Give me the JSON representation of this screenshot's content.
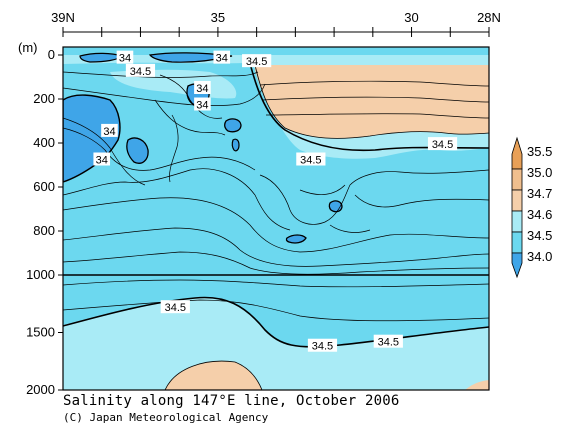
{
  "chart_data": {
    "type": "heatmap",
    "title": "Salinity along 147°E line, October 2006",
    "x_ticks": [
      "39N",
      "35",
      "30",
      "28N"
    ],
    "x_ticks_lat": [
      39,
      35,
      30,
      28
    ],
    "xlim": [
      39,
      28
    ],
    "y_unit_label": "(m)",
    "y_ticks": [
      "0",
      "200",
      "400",
      "600",
      "800",
      "1000",
      "1500",
      "2000"
    ],
    "y_ticks_m": [
      0,
      200,
      400,
      600,
      800,
      1000,
      1500,
      2000
    ],
    "ylim": [
      0,
      2000
    ],
    "y_scale_break_m": 1000,
    "colorbar": {
      "labels": [
        "35.5",
        "35.0",
        "34.7",
        "34.6",
        "34.5",
        "34.0"
      ],
      "levels": [
        35.5,
        35.0,
        34.7,
        34.6,
        34.5,
        34.0
      ],
      "colors": [
        "#e8a057",
        "#f0bf8e",
        "#f5cfaa",
        "#a9ebf6",
        "#6cd8ef",
        "#3fa5e8"
      ]
    },
    "contour_labels": [
      {
        "text": "34",
        "lat": 37.4,
        "depth_m": 12
      },
      {
        "text": "34",
        "lat": 34.9,
        "depth_m": 12
      },
      {
        "text": "34.5",
        "lat": 34.0,
        "depth_m": 28
      },
      {
        "text": "34.5",
        "lat": 37.0,
        "depth_m": 72
      },
      {
        "text": "34",
        "lat": 35.4,
        "depth_m": 150
      },
      {
        "text": "34",
        "lat": 35.4,
        "depth_m": 225
      },
      {
        "text": "34",
        "lat": 37.8,
        "depth_m": 345
      },
      {
        "text": "34",
        "lat": 38.0,
        "depth_m": 475
      },
      {
        "text": "34.5",
        "lat": 32.6,
        "depth_m": 475
      },
      {
        "text": "34.5",
        "lat": 29.2,
        "depth_m": 405
      },
      {
        "text": "34.5",
        "lat": 36.1,
        "depth_m": 1280
      },
      {
        "text": "34.5",
        "lat": 32.3,
        "depth_m": 1615
      },
      {
        "text": "34.5",
        "lat": 30.6,
        "depth_m": 1580
      }
    ]
  },
  "caption": {
    "title": "Salinity along 147°E line, October 2006",
    "credit": "(C) Japan Meteorological Agency"
  }
}
